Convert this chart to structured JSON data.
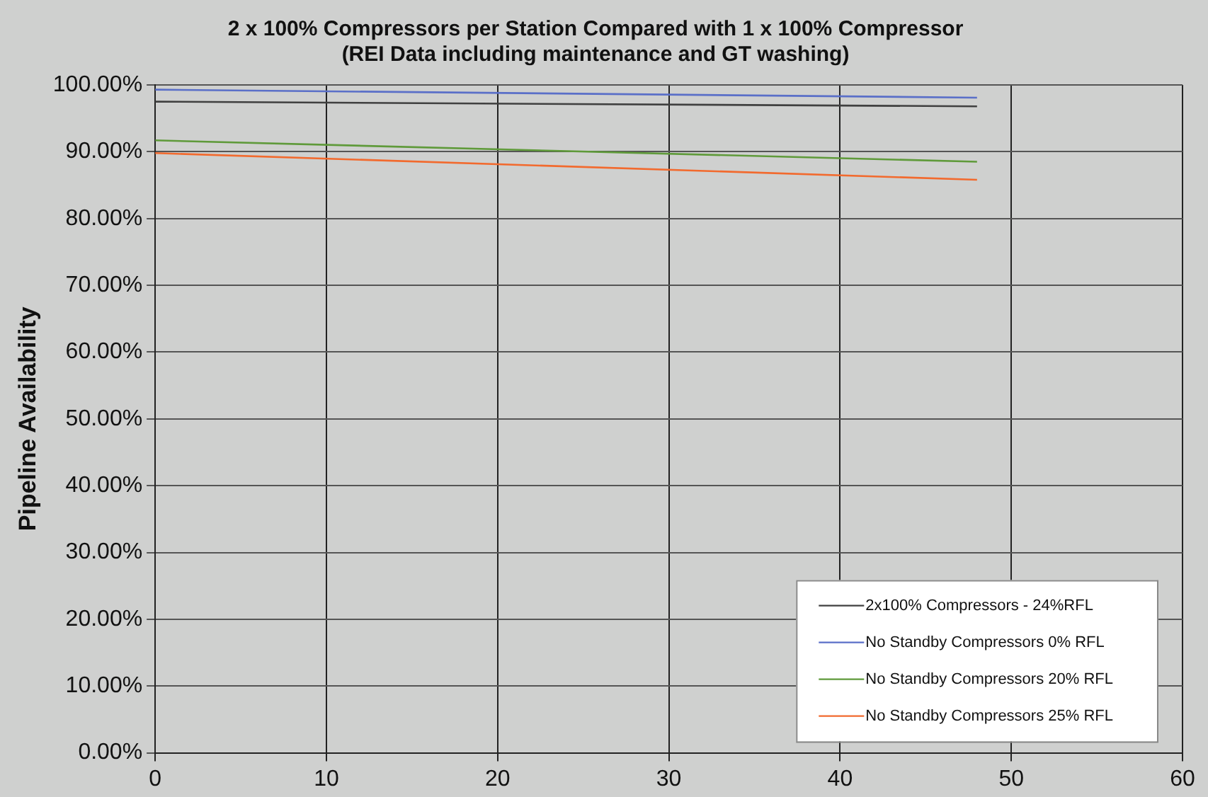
{
  "chart_data": {
    "type": "line",
    "title": [
      "2 x 100% Compressors per Station Compared with 1 x 100% Compressor",
      "(REI Data including maintenance and GT washing)"
    ],
    "ylabel": "Pipeline Availability",
    "x": [
      0,
      48
    ],
    "series": [
      {
        "name": "2x100% Compressors - 24%RFL",
        "color": "#404040",
        "values": [
          97.5,
          96.8
        ]
      },
      {
        "name": "No Standby Compressors 0% RFL",
        "color": "#5a6fc8",
        "values": [
          99.3,
          98.1
        ]
      },
      {
        "name": "No Standby Compressors 20% RFL",
        "color": "#5f9a3a",
        "values": [
          91.7,
          88.5
        ]
      },
      {
        "name": "No Standby Compressors 25% RFL",
        "color": "#f26a2e",
        "values": [
          89.8,
          85.8
        ]
      }
    ],
    "xlim": [
      0,
      60
    ],
    "xticks": [
      0,
      10,
      20,
      30,
      40,
      50,
      60
    ],
    "ylim": [
      0,
      100
    ],
    "yticks": [
      {
        "value": 0,
        "label": "0.00%"
      },
      {
        "value": 10,
        "label": "10.00%"
      },
      {
        "value": 20,
        "label": "20.00%"
      },
      {
        "value": 30,
        "label": "30.00%"
      },
      {
        "value": 40,
        "label": "40.00%"
      },
      {
        "value": 50,
        "label": "50.00%"
      },
      {
        "value": 60,
        "label": "60.00%"
      },
      {
        "value": 70,
        "label": "70.00%"
      },
      {
        "value": 80,
        "label": "80.00%"
      },
      {
        "value": 90,
        "label": "90.00%"
      },
      {
        "value": 100,
        "label": "100.00%"
      }
    ],
    "grid": true,
    "legend": "bottom right",
    "marker": "none",
    "line_style": "solid"
  }
}
